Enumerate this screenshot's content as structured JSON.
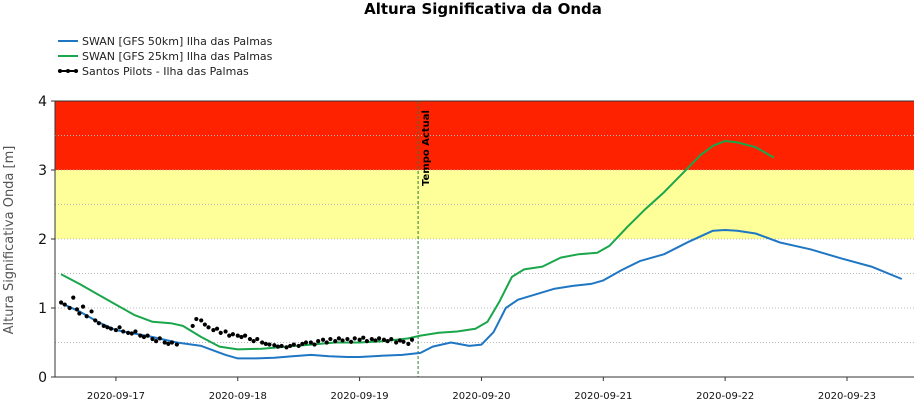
{
  "chart_data": {
    "type": "line",
    "title": "Altura Significativa da Onda",
    "ylabel": "Altura Significativa Onda [m]",
    "xlabel": "",
    "ylim": [
      0,
      4
    ],
    "yticks": [
      0,
      1,
      2,
      3,
      4
    ],
    "x_unit": "day",
    "x_range": [
      "2020-09-16T12:00",
      "2020-09-23T12:00"
    ],
    "x_range_days": [
      16.5,
      23.55
    ],
    "xticks": [
      "2020-09-17",
      "2020-09-18",
      "2020-09-19",
      "2020-09-20",
      "2020-09-21",
      "2020-09-22",
      "2020-09-23"
    ],
    "xtick_days": [
      17,
      18,
      19,
      20,
      21,
      22,
      23
    ],
    "grid": "horizontal dotted",
    "legend_position": "top-left",
    "bands": [
      {
        "from": 3,
        "to": 4,
        "color": "#ff2200"
      },
      {
        "from": 2,
        "to": 3,
        "color": "#ffff99"
      }
    ],
    "marker": {
      "label": "Tempo Actual",
      "day": 19.48,
      "color": "#2e7d32"
    },
    "series": [
      {
        "name": "SWAN [GFS 50km] Ilha das Palmas",
        "color": "#1f77c4",
        "x_days": [
          16.55,
          16.7,
          16.85,
          17.0,
          17.15,
          17.3,
          17.5,
          17.7,
          17.9,
          18.0,
          18.15,
          18.3,
          18.45,
          18.6,
          18.75,
          18.9,
          19.0,
          19.2,
          19.35,
          19.5,
          19.6,
          19.75,
          19.9,
          20.0,
          20.1,
          20.2,
          20.3,
          20.45,
          20.6,
          20.75,
          20.9,
          21.0,
          21.15,
          21.3,
          21.5,
          21.7,
          21.9,
          22.0,
          22.1,
          22.25,
          22.45,
          22.7,
          22.95,
          23.2,
          23.45
        ],
        "y": [
          1.07,
          0.95,
          0.8,
          0.68,
          0.63,
          0.58,
          0.5,
          0.45,
          0.32,
          0.27,
          0.27,
          0.28,
          0.3,
          0.32,
          0.3,
          0.29,
          0.29,
          0.31,
          0.32,
          0.35,
          0.44,
          0.5,
          0.45,
          0.47,
          0.65,
          1.0,
          1.12,
          1.2,
          1.28,
          1.32,
          1.35,
          1.4,
          1.55,
          1.68,
          1.78,
          1.96,
          2.12,
          2.13,
          2.12,
          2.08,
          1.95,
          1.85,
          1.72,
          1.6,
          1.42
        ]
      },
      {
        "name": "SWAN [GFS 25km] Ilha das Palmas",
        "color": "#1aa64a",
        "x_days": [
          16.55,
          16.7,
          16.85,
          17.0,
          17.15,
          17.3,
          17.45,
          17.55,
          17.7,
          17.85,
          18.0,
          18.2,
          18.4,
          18.6,
          18.8,
          19.0,
          19.2,
          19.4,
          19.5,
          19.65,
          19.8,
          19.95,
          20.05,
          20.15,
          20.25,
          20.35,
          20.5,
          20.65,
          20.8,
          20.95,
          21.05,
          21.2,
          21.35,
          21.5,
          21.65,
          21.8,
          21.9,
          22.0,
          22.1,
          22.25,
          22.4
        ],
        "y": [
          1.49,
          1.35,
          1.2,
          1.05,
          0.9,
          0.8,
          0.78,
          0.74,
          0.58,
          0.44,
          0.4,
          0.41,
          0.44,
          0.47,
          0.5,
          0.5,
          0.52,
          0.56,
          0.6,
          0.64,
          0.66,
          0.7,
          0.8,
          1.1,
          1.45,
          1.56,
          1.6,
          1.73,
          1.78,
          1.8,
          1.9,
          2.18,
          2.44,
          2.68,
          2.95,
          3.22,
          3.35,
          3.42,
          3.4,
          3.33,
          3.18
        ]
      },
      {
        "name": "Santos Pilots - Ilha das Palmas",
        "color": "#000000",
        "style": "points",
        "x_days": [
          16.55,
          16.58,
          16.62,
          16.65,
          16.68,
          16.7,
          16.73,
          16.76,
          16.8,
          16.83,
          16.86,
          16.9,
          16.93,
          16.96,
          17.0,
          17.03,
          17.06,
          17.1,
          17.13,
          17.16,
          17.2,
          17.23,
          17.26,
          17.3,
          17.33,
          17.36,
          17.4,
          17.43,
          17.46,
          17.5,
          17.63,
          17.66,
          17.7,
          17.73,
          17.76,
          17.8,
          17.83,
          17.86,
          17.9,
          17.93,
          17.96,
          18.0,
          18.03,
          18.06,
          18.1,
          18.13,
          18.16,
          18.2,
          18.23,
          18.26,
          18.3,
          18.33,
          18.36,
          18.4,
          18.43,
          18.46,
          18.5,
          18.53,
          18.56,
          18.6,
          18.63,
          18.66,
          18.7,
          18.73,
          18.76,
          18.8,
          18.83,
          18.86,
          18.9,
          18.93,
          18.96,
          19.0,
          19.03,
          19.06,
          19.1,
          19.13,
          19.16,
          19.2,
          19.23,
          19.26,
          19.3,
          19.33,
          19.36,
          19.4,
          19.43
        ],
        "y": [
          1.08,
          1.05,
          1.0,
          1.15,
          0.98,
          0.92,
          1.02,
          0.88,
          0.95,
          0.82,
          0.78,
          0.74,
          0.72,
          0.7,
          0.68,
          0.72,
          0.66,
          0.64,
          0.63,
          0.66,
          0.6,
          0.58,
          0.6,
          0.55,
          0.52,
          0.56,
          0.5,
          0.48,
          0.5,
          0.47,
          0.74,
          0.84,
          0.82,
          0.76,
          0.72,
          0.68,
          0.7,
          0.64,
          0.66,
          0.6,
          0.62,
          0.6,
          0.58,
          0.6,
          0.55,
          0.52,
          0.55,
          0.5,
          0.48,
          0.47,
          0.46,
          0.44,
          0.45,
          0.43,
          0.45,
          0.47,
          0.45,
          0.48,
          0.5,
          0.5,
          0.47,
          0.52,
          0.54,
          0.5,
          0.55,
          0.52,
          0.56,
          0.53,
          0.55,
          0.51,
          0.56,
          0.54,
          0.57,
          0.52,
          0.55,
          0.53,
          0.56,
          0.54,
          0.52,
          0.55,
          0.5,
          0.53,
          0.51,
          0.48,
          0.54
        ]
      }
    ]
  }
}
